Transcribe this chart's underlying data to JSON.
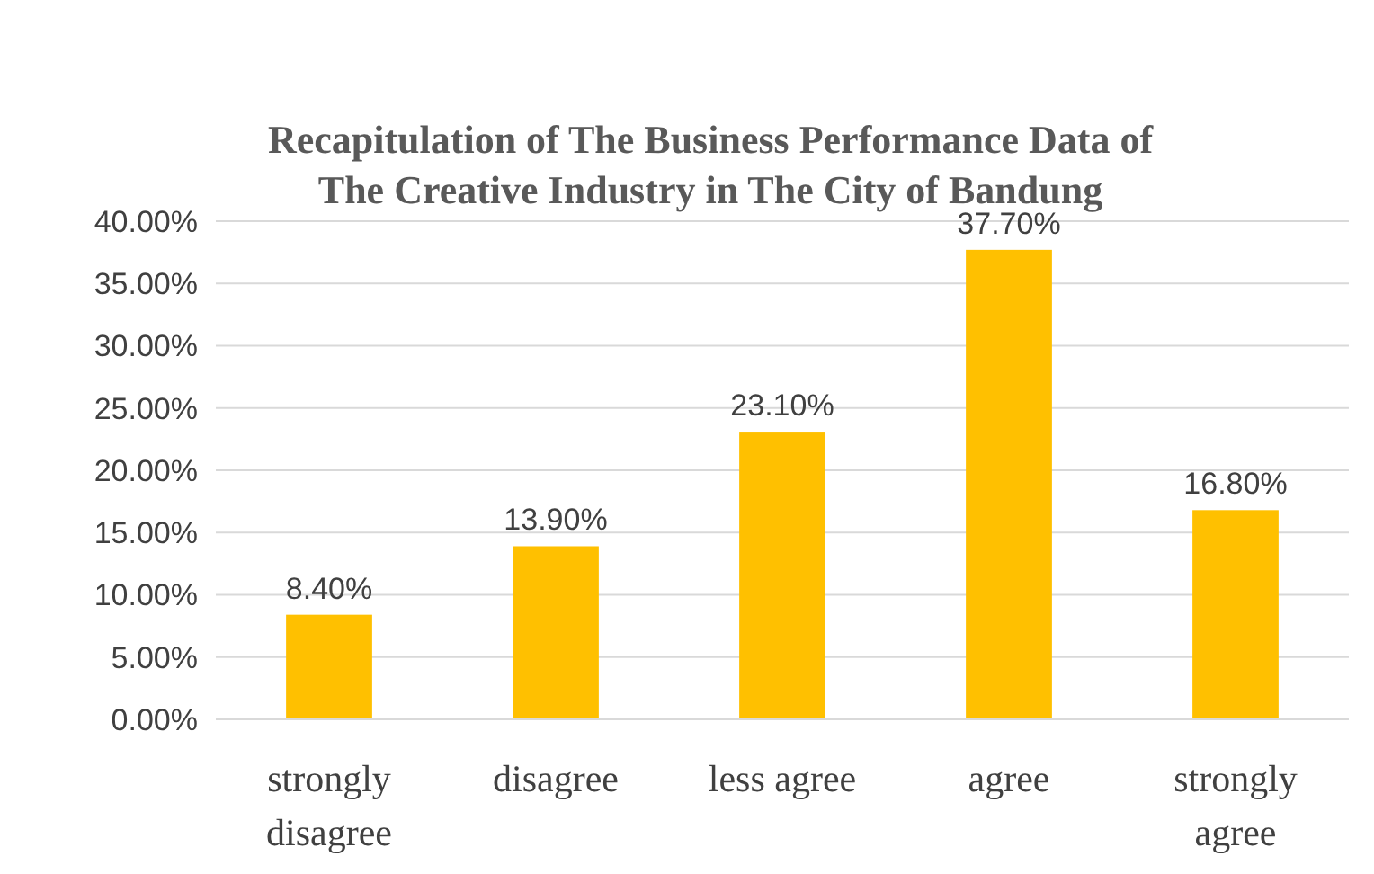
{
  "chart_data": {
    "type": "bar",
    "title": "Recapitulation of The Business Performance Data of The Creative Industry in The City of Bandung",
    "categories": [
      "strongly disagree",
      "disagree",
      "less agree",
      "agree",
      "strongly agree"
    ],
    "values": [
      8.4,
      13.9,
      23.1,
      37.7,
      16.8
    ],
    "value_labels": [
      "8.40%",
      "13.90%",
      "23.10%",
      "37.70%",
      "16.80%"
    ],
    "color": "#ffc000",
    "ylim": [
      0,
      40
    ],
    "yticks": [
      {
        "value": 0,
        "label": "0.00%"
      },
      {
        "value": 5,
        "label": "5.00%"
      },
      {
        "value": 10,
        "label": "10.00%"
      },
      {
        "value": 15,
        "label": "15.00%"
      },
      {
        "value": 20,
        "label": "20.00%"
      },
      {
        "value": 25,
        "label": "25.00%"
      },
      {
        "value": 30,
        "label": "30.00%"
      },
      {
        "value": 35,
        "label": "35.00%"
      },
      {
        "value": 40,
        "label": "40.00%"
      }
    ],
    "grid": "y"
  }
}
